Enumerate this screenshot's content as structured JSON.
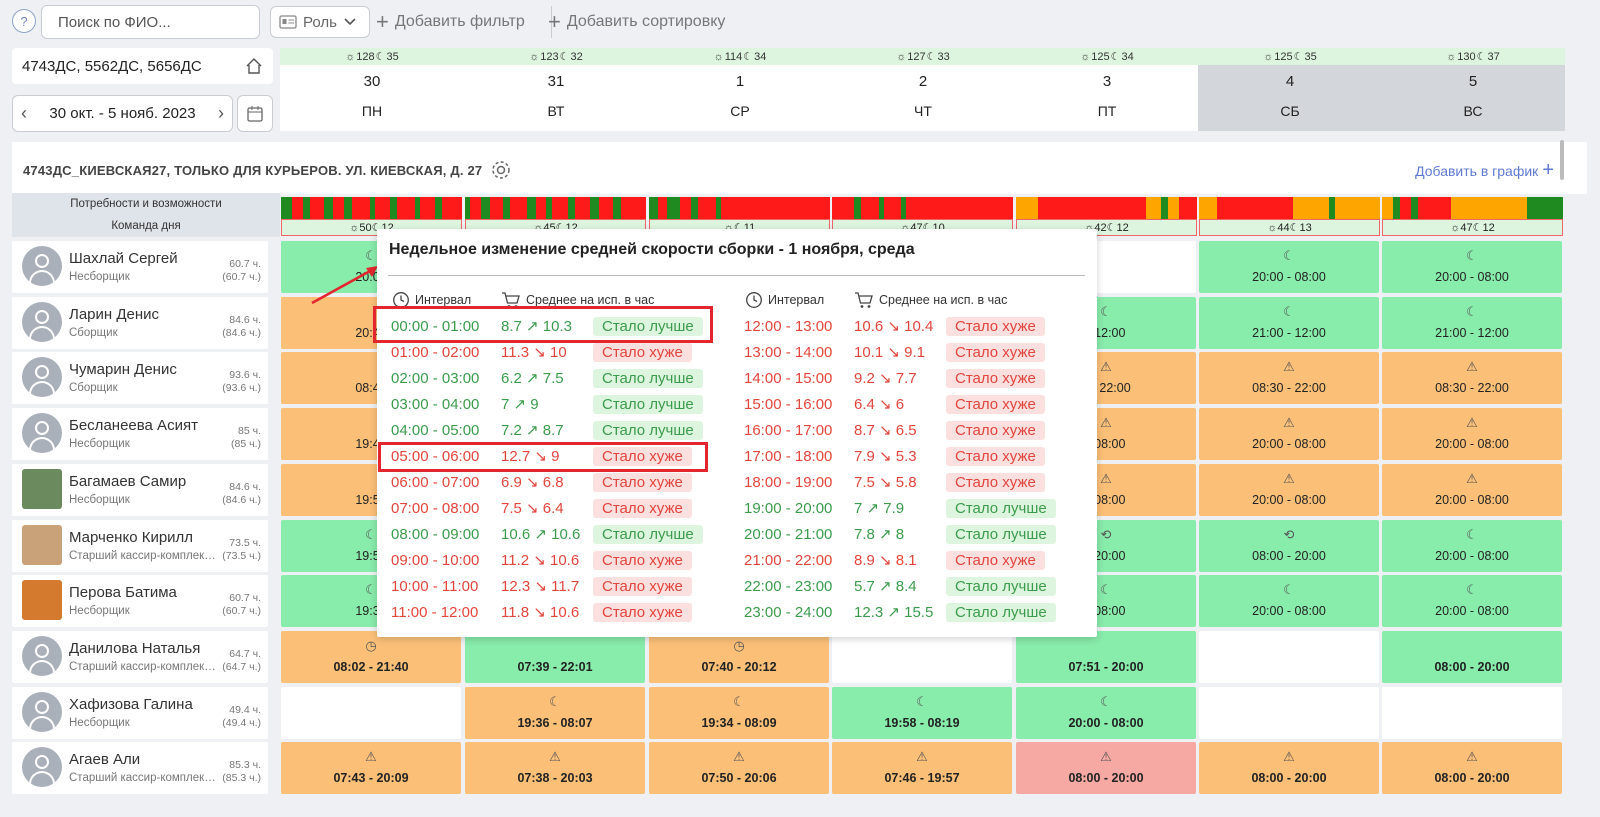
{
  "toolbar": {
    "help": "?",
    "search_placeholder": "Поиск по ФИО...",
    "role": "Роль",
    "add_filter": "Добавить фильтр",
    "add_sort": "Добавить сортировку"
  },
  "stores": "4743ДС, 5562ДС, 5656ДС",
  "date_range": "30 окт. - 5 нояб. 2023",
  "days": [
    {
      "sun": "128",
      "moon": "35",
      "num": "30",
      "wd": "ПН",
      "weekend": false
    },
    {
      "sun": "123",
      "moon": "32",
      "num": "31",
      "wd": "ВТ",
      "weekend": false
    },
    {
      "sun": "114",
      "moon": "34",
      "num": "1",
      "wd": "СР",
      "weekend": false
    },
    {
      "sun": "127",
      "moon": "33",
      "num": "2",
      "wd": "ЧТ",
      "weekend": false
    },
    {
      "sun": "125",
      "moon": "34",
      "num": "3",
      "wd": "ПТ",
      "weekend": false
    },
    {
      "sun": "125",
      "moon": "35",
      "num": "4",
      "wd": "СБ",
      "weekend": true
    },
    {
      "sun": "130",
      "moon": "37",
      "num": "5",
      "wd": "ВС",
      "weekend": true
    }
  ],
  "section": {
    "title": "4743ДС_КИЕВСКАЯ27, ТОЛЬКО ДЛЯ КУРЬЕРОВ. УЛ. КИЕВСКАЯ, Д. 27",
    "add": "Добавить в график",
    "needs": "Потребности и возможности",
    "team": "Команда дня"
  },
  "team_day": [
    {
      "sun": "50",
      "moon": "12"
    },
    {
      "sun": "45",
      "moon": "12"
    },
    {
      "sun": "",
      "moon": "11"
    },
    {
      "sun": "47",
      "moon": "10"
    },
    {
      "sun": "42",
      "moon": "12"
    },
    {
      "sun": "44",
      "moon": "13"
    },
    {
      "sun": "47",
      "moon": "12"
    }
  ],
  "employees": [
    {
      "name": "Шахлай Сергей",
      "role": "Несборщик",
      "h1": "60.7 ч.",
      "h2": "(60.7 ч.)",
      "photo": false
    },
    {
      "name": "Ларин Денис",
      "role": "Сборщик",
      "h1": "84.6 ч.",
      "h2": "(84.6 ч.)",
      "photo": false
    },
    {
      "name": "Чумарин Денис",
      "role": "Сборщик",
      "h1": "93.6 ч.",
      "h2": "(93.6 ч.)",
      "photo": false
    },
    {
      "name": "Бесланеева Асият",
      "role": "Несборщик",
      "h1": "85 ч.",
      "h2": "(85 ч.)",
      "photo": false
    },
    {
      "name": "Багамаев Самир",
      "role": "Несборщик",
      "h1": "84.6 ч.",
      "h2": "(84.6 ч.)",
      "photo": true
    },
    {
      "name": "Марченко Кирилл",
      "role": "Старший кассир-комплектовщик",
      "h1": "73.5 ч.",
      "h2": "(73.5 ч.)",
      "photo": true
    },
    {
      "name": "Перова Батима",
      "role": "Несборщик",
      "h1": "60.7 ч.",
      "h2": "(60.7 ч.)",
      "photo": true
    },
    {
      "name": "Данилова Наталья",
      "role": "Старший кассир-комплектовщик",
      "h1": "64.7 ч.",
      "h2": "(64.7 ч.)",
      "photo": false
    },
    {
      "name": "Хафизова Галина",
      "role": "Несборщик",
      "h1": "49.4 ч.",
      "h2": "(49.4 ч.)",
      "photo": false
    },
    {
      "name": "Агаев Али",
      "role": "Старший кассир-комплектовщик",
      "h1": "85.3 ч.",
      "h2": "(85.3 ч.)",
      "photo": false
    }
  ],
  "colors": {
    "green": "#88ecab",
    "orange": "#fbbf78",
    "red": "#f6a8a2",
    "white": "#ffffff",
    "bar_red": "#ff1a1a",
    "bar_green": "#1f8a1f",
    "bar_orange": "#ffa500"
  },
  "grid": [
    [
      {
        "c": "green",
        "icon": "moon-icon",
        "t": "20:06"
      },
      null,
      null,
      null,
      {
        "c": "white",
        "icon": "",
        "t": ""
      },
      {
        "c": "green",
        "icon": "moon-icon",
        "t": "20:00 - 08:00"
      },
      {
        "c": "green",
        "icon": "moon-icon",
        "t": "20:00 - 08:00"
      }
    ],
    [
      {
        "c": "orange",
        "icon": "",
        "t": "20:49"
      },
      null,
      null,
      null,
      {
        "c": "green",
        "icon": "moon-icon",
        "t": "- 12:00"
      },
      {
        "c": "green",
        "icon": "moon-icon",
        "t": "21:00 - 12:00"
      },
      {
        "c": "green",
        "icon": "moon-icon",
        "t": "21:00 - 12:00"
      }
    ],
    [
      {
        "c": "orange",
        "icon": "",
        "t": "08:49"
      },
      null,
      null,
      null,
      {
        "c": "orange",
        "icon": "warning-icon",
        "t": "2 - 22:00"
      },
      {
        "c": "orange",
        "icon": "warning-icon",
        "t": "08:30 - 22:00"
      },
      {
        "c": "orange",
        "icon": "warning-icon",
        "t": "08:30 - 22:00"
      }
    ],
    [
      {
        "c": "orange",
        "icon": "",
        "t": "19:48"
      },
      null,
      null,
      null,
      {
        "c": "orange",
        "icon": "warning-icon",
        "t": "- 08:00"
      },
      {
        "c": "orange",
        "icon": "warning-icon",
        "t": "20:00 - 08:00"
      },
      {
        "c": "orange",
        "icon": "warning-icon",
        "t": "20:00 - 08:00"
      }
    ],
    [
      {
        "c": "orange",
        "icon": "",
        "t": "19:54"
      },
      null,
      null,
      null,
      {
        "c": "orange",
        "icon": "warning-icon",
        "t": "- 08:00"
      },
      {
        "c": "orange",
        "icon": "warning-icon",
        "t": "20:00 - 08:00"
      },
      {
        "c": "orange",
        "icon": "warning-icon",
        "t": "20:00 - 08:00"
      }
    ],
    [
      {
        "c": "green",
        "icon": "moon-icon",
        "t": "19:50"
      },
      null,
      null,
      null,
      {
        "c": "green",
        "icon": "swap-icon",
        "t": "- 20:00"
      },
      {
        "c": "green",
        "icon": "swap-icon",
        "t": "08:00 - 20:00"
      },
      {
        "c": "green",
        "icon": "moon-icon",
        "t": "20:00 - 08:00"
      }
    ],
    [
      {
        "c": "green",
        "icon": "moon-icon",
        "t": "19:32"
      },
      null,
      null,
      null,
      {
        "c": "green",
        "icon": "moon-icon",
        "t": "- 08:00"
      },
      {
        "c": "green",
        "icon": "moon-icon",
        "t": "20:00 - 08:00"
      },
      {
        "c": "green",
        "icon": "moon-icon",
        "t": "20:00 - 08:00"
      }
    ],
    [
      {
        "c": "orange",
        "icon": "clock-icon",
        "t": "08:02 - 21:40"
      },
      {
        "c": "green",
        "icon": "",
        "t": "07:39 - 22:01"
      },
      {
        "c": "orange",
        "icon": "clock-icon",
        "t": "07:40 - 20:12"
      },
      {
        "c": "white",
        "icon": "",
        "t": ""
      },
      {
        "c": "green",
        "icon": "",
        "t": "07:51 - 20:00"
      },
      {
        "c": "white",
        "icon": "",
        "t": ""
      },
      {
        "c": "green",
        "icon": "",
        "t": "08:00 - 20:00"
      }
    ],
    [
      {
        "c": "white",
        "icon": "",
        "t": ""
      },
      {
        "c": "orange",
        "icon": "moon-icon",
        "t": "19:36 - 08:07"
      },
      {
        "c": "orange",
        "icon": "moon-icon",
        "t": "19:34 - 08:09"
      },
      {
        "c": "green",
        "icon": "moon-icon",
        "t": "19:58 - 08:19"
      },
      {
        "c": "green",
        "icon": "moon-icon",
        "t": "20:00 - 08:00"
      },
      {
        "c": "white",
        "icon": "",
        "t": ""
      },
      {
        "c": "white",
        "icon": "",
        "t": ""
      }
    ],
    [
      {
        "c": "orange",
        "icon": "warning-icon",
        "t": "07:43 - 20:09"
      },
      {
        "c": "orange",
        "icon": "warning-icon",
        "t": "07:38 - 20:03"
      },
      {
        "c": "orange",
        "icon": "warning-icon",
        "t": "07:50 - 20:06"
      },
      {
        "c": "orange",
        "icon": "warning-icon",
        "t": "07:46 - 19:57"
      },
      {
        "c": "red",
        "icon": "warning-icon",
        "t": "08:00 - 20:00"
      },
      {
        "c": "orange",
        "icon": "warning-icon",
        "t": "08:00 - 20:00"
      },
      {
        "c": "orange",
        "icon": "warning-icon",
        "t": "08:00 - 20:00"
      }
    ]
  ],
  "popup": {
    "title": "Недельное изменение средней скорости сборки - 1 ноября, среда",
    "h_interval": "Интервал",
    "h_avg": "Среднее на исп. в час",
    "left": [
      {
        "iv": "00:00 - 01:00",
        "sp": "8.7 ↗ 10.3",
        "st": "Стало лучше",
        "good": true
      },
      {
        "iv": "01:00 - 02:00",
        "sp": "11.3 ↘ 10",
        "st": "Стало хуже",
        "good": false
      },
      {
        "iv": "02:00 - 03:00",
        "sp": "6.2 ↗ 7.5",
        "st": "Стало лучше",
        "good": true
      },
      {
        "iv": "03:00 - 04:00",
        "sp": "7 ↗ 9",
        "st": "Стало лучше",
        "good": true
      },
      {
        "iv": "04:00 - 05:00",
        "sp": "7.2 ↗ 8.7",
        "st": "Стало лучше",
        "good": true
      },
      {
        "iv": "05:00 - 06:00",
        "sp": "12.7 ↘ 9",
        "st": "Стало хуже",
        "good": false
      },
      {
        "iv": "06:00 - 07:00",
        "sp": "6.9 ↘ 6.8",
        "st": "Стало хуже",
        "good": false
      },
      {
        "iv": "07:00 - 08:00",
        "sp": "7.5 ↘ 6.4",
        "st": "Стало хуже",
        "good": false
      },
      {
        "iv": "08:00 - 09:00",
        "sp": "10.6 ↗ 10.6",
        "st": "Стало лучше",
        "good": true
      },
      {
        "iv": "09:00 - 10:00",
        "sp": "11.2 ↘ 10.6",
        "st": "Стало хуже",
        "good": false
      },
      {
        "iv": "10:00 - 11:00",
        "sp": "12.3 ↘ 11.7",
        "st": "Стало хуже",
        "good": false
      },
      {
        "iv": "11:00 - 12:00",
        "sp": "11.8 ↘ 10.6",
        "st": "Стало хуже",
        "good": false
      }
    ],
    "right": [
      {
        "iv": "12:00 - 13:00",
        "sp": "10.6 ↘ 10.4",
        "st": "Стало хуже",
        "good": false
      },
      {
        "iv": "13:00 - 14:00",
        "sp": "10.1 ↘ 9.1",
        "st": "Стало хуже",
        "good": false
      },
      {
        "iv": "14:00 - 15:00",
        "sp": "9.2 ↘ 7.7",
        "st": "Стало хуже",
        "good": false
      },
      {
        "iv": "15:00 - 16:00",
        "sp": "6.4 ↘ 6",
        "st": "Стало хуже",
        "good": false
      },
      {
        "iv": "16:00 - 17:00",
        "sp": "8.7 ↘ 6.5",
        "st": "Стало хуже",
        "good": false
      },
      {
        "iv": "17:00 - 18:00",
        "sp": "7.9 ↘ 5.3",
        "st": "Стало хуже",
        "good": false
      },
      {
        "iv": "18:00 - 19:00",
        "sp": "7.5 ↘ 5.8",
        "st": "Стало хуже",
        "good": false
      },
      {
        "iv": "19:00 - 20:00",
        "sp": "7 ↗ 7.9",
        "st": "Стало лучше",
        "good": true
      },
      {
        "iv": "20:00 - 21:00",
        "sp": "7.8 ↗ 8",
        "st": "Стало лучше",
        "good": true
      },
      {
        "iv": "21:00 - 22:00",
        "sp": "8.9 ↘ 8.1",
        "st": "Стало хуже",
        "good": false
      },
      {
        "iv": "22:00 - 23:00",
        "sp": "5.7 ↗ 8.4",
        "st": "Стало лучше",
        "good": true
      },
      {
        "iv": "23:00 - 24:00",
        "sp": "12.3 ↗ 15.5",
        "st": "Стало лучше",
        "good": true
      }
    ]
  }
}
